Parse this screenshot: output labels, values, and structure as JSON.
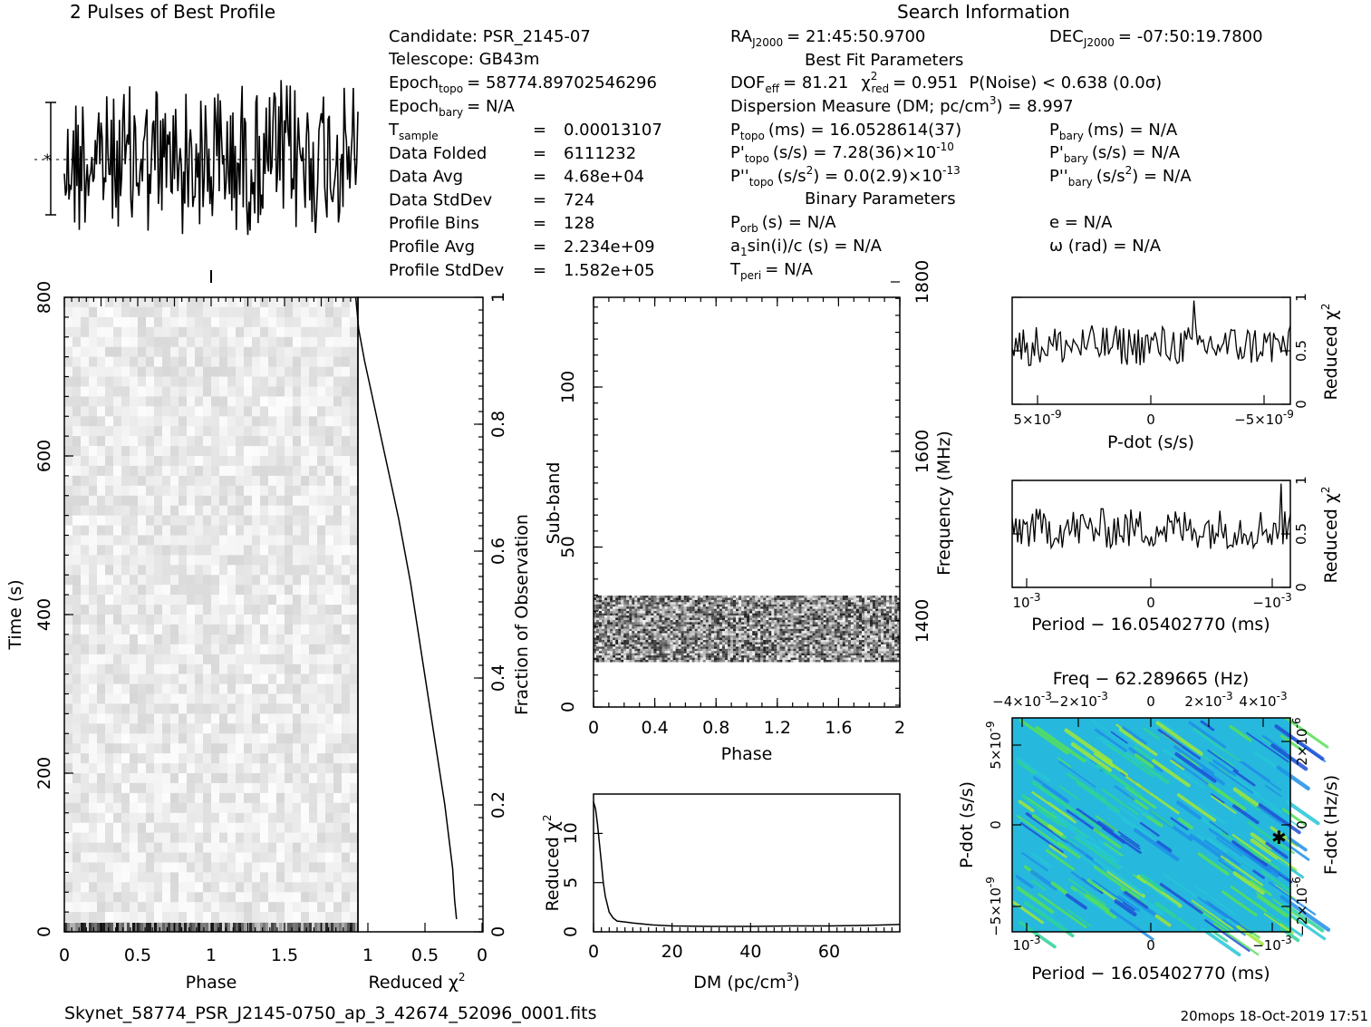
{
  "header": {
    "profile_title": "2 Pulses of Best Profile",
    "search_title": "Search Information",
    "best_fit_title": "Best Fit Parameters",
    "binary_title": "Binary Parameters"
  },
  "info_left": {
    "candidate": "Candidate:  PSR_2145-07",
    "telescope": "Telescope:  GB43m",
    "epoch_topo_label": "Epoch",
    "epoch_topo_sub": "topo",
    "epoch_topo_value": "= 58774.89702546296",
    "epoch_bary_label": "Epoch",
    "epoch_bary_sub": "bary",
    "epoch_bary_value": "= N/A",
    "rows": [
      {
        "label": "T",
        "sub": "sample",
        "eq": "=",
        "value": "0.00013107"
      },
      {
        "label": "Data Folded",
        "sub": "",
        "eq": "=",
        "value": "6111232"
      },
      {
        "label": "Data Avg",
        "sub": "",
        "eq": "=",
        "value": "4.68e+04"
      },
      {
        "label": "Data StdDev",
        "sub": "",
        "eq": "=",
        "value": "724"
      },
      {
        "label": "Profile Bins",
        "sub": "",
        "eq": "=",
        "value": "128"
      },
      {
        "label": "Profile Avg",
        "sub": "",
        "eq": "=",
        "value": "2.234e+09"
      },
      {
        "label": "Profile StdDev",
        "sub": "",
        "eq": "=",
        "value": "1.582e+05"
      }
    ]
  },
  "info_right": {
    "ra": "= 21:45:50.9700",
    "ra_label": "RA",
    "ra_sub": "J2000",
    "dec": "= -07:50:19.7800",
    "dec_label": "DEC",
    "dec_sub": "J2000",
    "dof": "DOF",
    "dof_sub": "eff",
    "dof_value": "= 81.21",
    "chi": "χ",
    "chi_sup": "2",
    "chi_sub": "red",
    "chi_value": "= 0.951",
    "pnoise": "P(Noise) < 0.638  (0.0σ)",
    "dm": "Dispersion Measure (DM; pc/cm",
    "dm_sup": "3",
    "dm_value": ") = 8.997",
    "ptopo": "P",
    "ptopo_sub": "topo",
    "ptopo_value": "(ms) =  16.0528614(37)",
    "pbary": "P",
    "pbary_sub": "bary",
    "pbary_value": "(ms) = N/A",
    "pdtopo": "P'",
    "pdtopo_sub": "topo",
    "pdtopo_value": "(s/s) =  7.28(36)×10",
    "pdtopo_exp": "-10",
    "pdbary": "P'",
    "pdbary_sub": "bary",
    "pdbary_value": "(s/s) = N/A",
    "pddtopo": "P''",
    "pddtopo_sub": "topo",
    "pddtopo_value": "(s/s",
    "pddtopo_sup": "2",
    "pddtopo_value2": ") = 0.0(2.9)×10",
    "pddtopo_exp": "-13",
    "pddbary": "P''",
    "pddbary_sub": "bary",
    "pddbary_value": "(s/s",
    "pddbary_sup": "2",
    "pddbary_value2": ") = N/A",
    "porb": "P",
    "porb_sub": "orb",
    "porb_value": "(s) = N/A",
    "e_value": "e = N/A",
    "a1": "a",
    "a1_sub": "1",
    "a1_value": "sin(i)/c (s) = N/A",
    "omega_value": "ω (rad) = N/A",
    "tperi": "T",
    "tperi_sub": "peri",
    "tperi_value": "= N/A"
  },
  "footer": {
    "filename": "Skynet_58774_PSR_J2145-0750_ap_3_42674_52096_0001.fits",
    "stamp": "20mops 18-Oct-2019 17:51"
  },
  "chart_data": [
    {
      "id": "profile",
      "type": "line",
      "title": "2 Pulses of Best Profile",
      "xlim": [
        0,
        2
      ],
      "note_n_bins": 128
    },
    {
      "id": "time_phase",
      "type": "heatmap",
      "xlabel": "Phase",
      "ylabel": "Time (s)",
      "xticks": [
        "0",
        "0.5",
        "1",
        "1.5"
      ],
      "yticks": [
        "0",
        "200",
        "400",
        "600",
        "800"
      ],
      "xlim": [
        0,
        2
      ],
      "ylim": [
        0,
        800
      ]
    },
    {
      "id": "chi_vs_time",
      "type": "line",
      "xlabel": "Reduced χ",
      "xlabel_sup": "2",
      "ylabel": "Fraction of Observation",
      "xticks": [
        "1",
        "0.5",
        "0"
      ],
      "yticks": [
        "0",
        "0.2",
        "0.4",
        "0.6",
        "0.8",
        "1"
      ],
      "x": [
        1.3,
        1.27,
        1.21,
        1.14,
        1.07,
        1.0,
        0.93,
        0.86,
        0.8,
        0.74,
        0.69,
        0.64,
        0.59,
        0.54,
        0.49,
        0.44,
        0.39,
        0.35,
        0.31,
        0.29,
        0.27
      ],
      "y": [
        1.0,
        0.95,
        0.9,
        0.85,
        0.8,
        0.75,
        0.7,
        0.65,
        0.6,
        0.55,
        0.5,
        0.45,
        0.4,
        0.35,
        0.3,
        0.25,
        0.2,
        0.15,
        0.1,
        0.05,
        0.02
      ]
    },
    {
      "id": "subband_phase",
      "type": "heatmap",
      "xlabel": "Phase",
      "ylabel": "Sub-band",
      "y2label": "Frequency (MHz)",
      "xticks": [
        "0",
        "0.4",
        "0.8",
        "1.2",
        "1.6",
        "2"
      ],
      "yticks": [
        "0",
        "50",
        "100"
      ],
      "y2ticks": [
        "1400",
        "1600",
        "1800"
      ],
      "xlim": [
        0,
        2
      ],
      "ylim": [
        0,
        128
      ],
      "y2lim": [
        1350,
        1800
      ],
      "filled_subbands": [
        14,
        35
      ]
    },
    {
      "id": "chi_vs_dm",
      "type": "line",
      "xlabel": "DM (pc/cm",
      "xlabel_sup": "3",
      "xlabel_end": ")",
      "ylabel": "Reduced χ",
      "ylabel_sup": "2",
      "xticks": [
        "0",
        "20",
        "40",
        "60"
      ],
      "yticks": [
        "0",
        "5",
        "10"
      ],
      "xlim": [
        0,
        78
      ],
      "ylim": [
        0,
        14
      ],
      "x": [
        0,
        0.5,
        1,
        1.5,
        2,
        2.5,
        3,
        4,
        5,
        6,
        8,
        10,
        15,
        20,
        30,
        40,
        50,
        60,
        70,
        78
      ],
      "y": [
        13.2,
        12.5,
        11.0,
        9.0,
        7.0,
        5.0,
        3.6,
        2.0,
        1.4,
        1.1,
        1.0,
        0.9,
        0.7,
        0.6,
        0.55,
        0.55,
        0.6,
        0.6,
        0.65,
        0.75
      ]
    },
    {
      "id": "chi_vs_pdot",
      "type": "line",
      "xlabel": "P-dot (s/s)",
      "ylabel": "Reduced χ",
      "ylabel_sup": "2",
      "xticks": [
        "5×10",
        "0",
        "−5×10"
      ],
      "xtick_exp": "-9",
      "yticks": [
        "0",
        "0.5",
        "1"
      ],
      "ylim": [
        0,
        1
      ]
    },
    {
      "id": "chi_vs_period",
      "type": "line",
      "xlabel": "Period − 16.05402770 (ms)",
      "ylabel": "Reduced χ",
      "ylabel_sup": "2",
      "xticks": [
        "10",
        "0",
        "−10"
      ],
      "xtick_exp": "-3",
      "yticks": [
        "0",
        "0.5",
        "1"
      ],
      "ylim": [
        0,
        1
      ]
    },
    {
      "id": "pp_dot",
      "type": "heatmap",
      "title": "Freq − 62.289665 (Hz)",
      "xlabel": "Period − 16.05402770 (ms)",
      "ylabel": "P-dot (s/s)",
      "y2label": "F-dot (Hz/s)",
      "xticks": [
        "10",
        "0",
        "−10"
      ],
      "xtick_exp": "-3",
      "top_ticks": [
        "−4×10",
        "−2×10",
        "0",
        "2×10",
        "4×10"
      ],
      "top_tick_exp": "-3",
      "yticks": [
        "5×10",
        "0",
        "−5×10"
      ],
      "ytick_exp": "-9",
      "y2ticks": [
        "−2×10",
        "0",
        "2×10"
      ],
      "y2tick_exp": "-6",
      "colors": [
        "#1e4fd6",
        "#1f8fe8",
        "#26c6d8",
        "#2fd39a",
        "#56e05a",
        "#9fe83a"
      ]
    }
  ]
}
